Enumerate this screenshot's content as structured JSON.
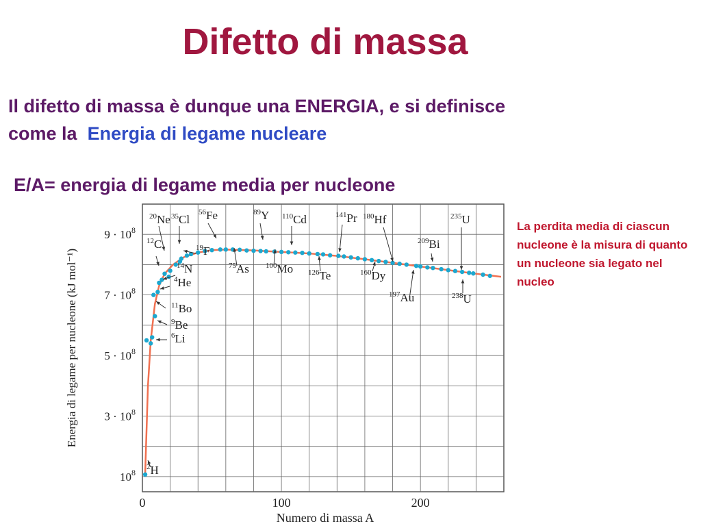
{
  "title": "Difetto di massa",
  "intro": {
    "line1": "Il difetto di massa è dunque una ENERGIA, e si definisce",
    "line2_prefix": "come la",
    "line2_highlight": "Energia di legame nucleare"
  },
  "ea_label": "E/A= energia di legame media per nucleone",
  "side_note": "La perdita media di ciascun nucleone è la misura di quanto un nucleone sia legato nel nucleo",
  "colors": {
    "title": "#a0173f",
    "text": "#5c1a66",
    "highlight": "#2f4bc4",
    "note": "#c0172e",
    "curve": "#f07050",
    "points": "#1ca7cf"
  },
  "chart_data": {
    "type": "scatter",
    "xlabel": "Numero di massa  A",
    "ylabel": "Energia di legame per nucleone (kJ mol⁻¹)",
    "xlim": [
      0,
      260
    ],
    "ylim": [
      50000000.0,
      1000000000.0
    ],
    "grid": true,
    "x_ticks": [
      {
        "value": 0,
        "label": "0"
      },
      {
        "value": 100,
        "label": "100"
      },
      {
        "value": 200,
        "label": "200"
      }
    ],
    "y_ticks": [
      {
        "value": 100000000.0,
        "base": "10",
        "exp": "8"
      },
      {
        "value": 300000000.0,
        "base": "3 · 10",
        "exp": "8"
      },
      {
        "value": 500000000.0,
        "base": "5 · 10",
        "exp": "8"
      },
      {
        "value": 700000000.0,
        "base": "7 · 10",
        "exp": "8"
      },
      {
        "value": 900000000.0,
        "base": "9 · 10",
        "exp": "8"
      }
    ],
    "series": [
      {
        "values": [
          [
            2,
            107000000.0
          ],
          [
            3,
            550000000.0
          ],
          [
            6,
            540000000.0
          ],
          [
            7,
            560000000.0
          ],
          [
            8,
            700000000.0
          ],
          [
            9,
            630000000.0
          ],
          [
            11,
            710000000.0
          ],
          [
            12,
            740000000.0
          ],
          [
            14,
            750000000.0
          ],
          [
            16,
            770000000.0
          ],
          [
            19,
            760000000.0
          ],
          [
            20,
            780000000.0
          ],
          [
            24,
            800000000.0
          ],
          [
            27,
            810000000.0
          ],
          [
            28,
            820000000.0
          ],
          [
            32,
            830000000.0
          ],
          [
            35,
            835000000.0
          ],
          [
            40,
            840000000.0
          ],
          [
            45,
            845000000.0
          ],
          [
            50,
            848000000.0
          ],
          [
            56,
            850000000.0
          ],
          [
            60,
            850000000.0
          ],
          [
            65,
            850000000.0
          ],
          [
            70,
            849000000.0
          ],
          [
            75,
            847000000.0
          ],
          [
            80,
            846000000.0
          ],
          [
            85,
            845000000.0
          ],
          [
            89,
            844000000.0
          ],
          [
            95,
            843000000.0
          ],
          [
            100,
            842000000.0
          ],
          [
            105,
            841000000.0
          ],
          [
            110,
            840000000.0
          ],
          [
            115,
            839000000.0
          ],
          [
            120,
            837000000.0
          ],
          [
            126,
            835000000.0
          ],
          [
            130,
            834000000.0
          ],
          [
            135,
            831000000.0
          ],
          [
            141,
            829000000.0
          ],
          [
            145,
            827000000.0
          ],
          [
            150,
            824000000.0
          ],
          [
            155,
            821000000.0
          ],
          [
            160,
            818000000.0
          ],
          [
            165,
            815000000.0
          ],
          [
            170,
            812000000.0
          ],
          [
            175,
            809000000.0
          ],
          [
            180,
            806000000.0
          ],
          [
            185,
            803000000.0
          ],
          [
            190,
            800000000.0
          ],
          [
            197,
            796000000.0
          ],
          [
            200,
            794000000.0
          ],
          [
            205,
            791000000.0
          ],
          [
            209,
            789000000.0
          ],
          [
            215,
            785000000.0
          ],
          [
            220,
            782000000.0
          ],
          [
            225,
            779000000.0
          ],
          [
            230,
            776000000.0
          ],
          [
            235,
            773000000.0
          ],
          [
            238,
            771000000.0
          ],
          [
            245,
            767000000.0
          ],
          [
            250,
            763000000.0
          ]
        ]
      }
    ],
    "curve": [
      [
        2,
        110000000.0
      ],
      [
        4,
        400000000.0
      ],
      [
        6,
        550000000.0
      ],
      [
        9,
        670000000.0
      ],
      [
        12,
        730000000.0
      ],
      [
        16,
        770000000.0
      ],
      [
        22,
        800000000.0
      ],
      [
        30,
        825000000.0
      ],
      [
        40,
        840000000.0
      ],
      [
        50,
        848000000.0
      ],
      [
        60,
        850000000.0
      ],
      [
        80,
        847000000.0
      ],
      [
        100,
        842000000.0
      ],
      [
        120,
        837000000.0
      ],
      [
        140,
        829000000.0
      ],
      [
        160,
        818000000.0
      ],
      [
        180,
        806000000.0
      ],
      [
        200,
        794000000.0
      ],
      [
        220,
        782000000.0
      ],
      [
        240,
        770000000.0
      ],
      [
        258,
        760000000.0
      ]
    ],
    "annotations": [
      {
        "mass": "20",
        "symbol": "Ne"
      },
      {
        "mass": "35",
        "symbol": "Cl"
      },
      {
        "mass": "56",
        "symbol": "Fe"
      },
      {
        "mass": "89",
        "symbol": "Y"
      },
      {
        "mass": "110",
        "symbol": "Cd"
      },
      {
        "mass": "141",
        "symbol": "Pr"
      },
      {
        "mass": "180",
        "symbol": "Hf"
      },
      {
        "mass": "235",
        "symbol": "U"
      },
      {
        "mass": "12",
        "symbol": "C"
      },
      {
        "mass": "19",
        "symbol": "F"
      },
      {
        "mass": "209",
        "symbol": "Bi"
      },
      {
        "mass": "75",
        "symbol": "As"
      },
      {
        "mass": "100",
        "symbol": "Mo"
      },
      {
        "mass": "126",
        "symbol": "Te"
      },
      {
        "mass": "160",
        "symbol": "Dy"
      },
      {
        "mass": "14",
        "symbol": "N"
      },
      {
        "mass": "4",
        "symbol": "He"
      },
      {
        "mass": "197",
        "symbol": "Au"
      },
      {
        "mass": "238",
        "symbol": "U"
      },
      {
        "mass": "11",
        "symbol": "Bo"
      },
      {
        "mass": "9",
        "symbol": "Be"
      },
      {
        "mass": "6",
        "symbol": "Li"
      },
      {
        "mass": "2",
        "symbol": "H"
      }
    ]
  }
}
